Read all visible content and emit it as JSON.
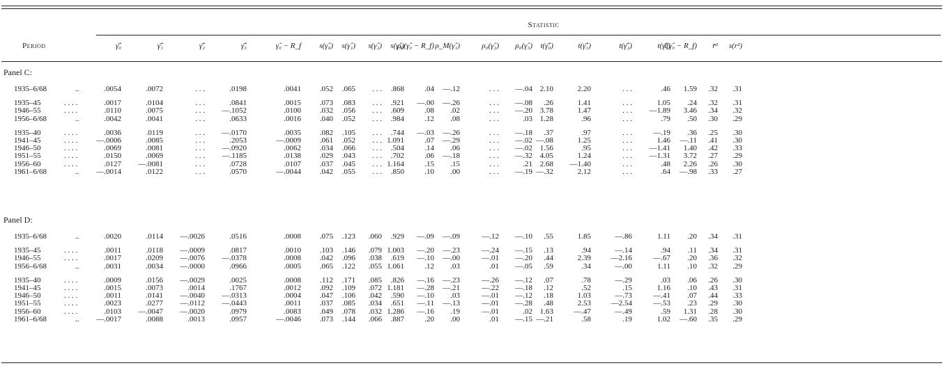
{
  "header": {
    "period_label": "Period",
    "statistic_label": "Statistic",
    "columns": [
      "γ̂̄₀",
      "γ̂̄₁",
      "γ̂̄₂",
      "γ̂̄₃",
      "γ̂₀ − R_f",
      "s(γ̂₀)",
      "s(γ̂₁)",
      "s(γ̂₂)",
      "s(γ̂₃)",
      "ρ₀(γ̂₀ − R_f)",
      "ρ_M(γ̂₁)",
      "ρ₀(γ̂₂)",
      "ρ₀(γ̂₃)",
      "t(γ̂̄₀)",
      "t(γ̂̄₁)",
      "t(γ̂̄₂)",
      "t(γ̂̄₃)",
      "t(γ̂₀ − R_f)",
      "r̄²",
      "s(r²)"
    ]
  },
  "panels": [
    {
      "label": "Panel C:",
      "groups": [
        [
          {
            "period": "1935–6/68",
            "dots": "..",
            "values": [
              ".0054",
              ".0072",
              ". . .",
              ".0198",
              ".0041",
              ".052",
              ".065",
              ". . .",
              ".868",
              ".04",
              "—.12",
              ". . .",
              "—.04",
              "2.10",
              "2.20",
              ". . .",
              ".46",
              "1.59",
              ".32",
              ".31"
            ]
          }
        ],
        [
          {
            "period": "1935–45",
            "dots": ". . . .",
            "values": [
              ".0017",
              ".0104",
              ". . .",
              ".0841",
              ".0015",
              ".073",
              ".083",
              ". . .",
              ".921",
              "—.00",
              "—.26",
              ". . .",
              "—.08",
              ".26",
              "1.41",
              ". . .",
              "1.05",
              ".24",
              ".32",
              ".31"
            ]
          },
          {
            "period": "1946–55",
            "dots": ". . . .",
            "values": [
              ".0110",
              ".0075",
              ". . .",
              "—.1052",
              ".0100",
              ".032",
              ".056",
              ". . .",
              ".609",
              ".08",
              ".02",
              ". . .",
              "—.20",
              "3.78",
              "1.47",
              ". . .",
              "—1.89",
              "3.46",
              ".34",
              ".32"
            ]
          },
          {
            "period": "1956–6/68",
            "dots": "..",
            "values": [
              ".0042",
              ".0041",
              ". . .",
              ".0633",
              ".0016",
              ".040",
              ".052",
              ". . .",
              ".984",
              ".12",
              ".08",
              ". . .",
              ".03",
              "1.28",
              ".96",
              ". . .",
              ".79",
              ".50",
              ".30",
              ".29"
            ]
          }
        ],
        [
          {
            "period": "1935–40",
            "dots": ". . . .",
            "values": [
              ".0036",
              ".0119",
              ". . .",
              "—.0170",
              ".0035",
              ".082",
              ".105",
              ". . .",
              ".744",
              "—.03",
              "—.26",
              ". . .",
              "—.18",
              ".37",
              ".97",
              ". . .",
              "—.19",
              ".36",
              ".25",
              ".30"
            ]
          },
          {
            "period": "1941–45",
            "dots": ". . . .",
            "values": [
              "—.0006",
              ".0085",
              ". . .",
              ".2053",
              "—.0009",
              ".061",
              ".052",
              ". . .",
              "1.091",
              ".07",
              "—.29",
              ". . .",
              "—.02",
              "—.08",
              "1.25",
              ". . .",
              "1.46",
              "—.11",
              ".41",
              ".30"
            ]
          },
          {
            "period": "1946–50",
            "dots": ". . . .",
            "values": [
              ".0069",
              ".0081",
              ". . .",
              "—.0920",
              ".0062",
              ".034",
              ".066",
              ". . .",
              ".504",
              ".14",
              ".06",
              ". . .",
              "—.02",
              "1.56",
              ".95",
              ". . .",
              "—1.41",
              "1.40",
              ".42",
              ".33"
            ]
          },
          {
            "period": "1951–55",
            "dots": ". . . .",
            "values": [
              ".0150",
              ".0069",
              ". . .",
              "—.1185",
              ".0138",
              ".029",
              ".043",
              ". . .",
              ".702",
              ".06",
              "—.18",
              ". . .",
              "—.32",
              "4.05",
              "1.24",
              ". . .",
              "—1.31",
              "3.72",
              ".27",
              ".29"
            ]
          },
          {
            "period": "1956–60",
            "dots": ". . . .",
            "values": [
              ".0127",
              "—.0081",
              ". . .",
              ".0728",
              ".0107",
              ".037",
              ".045",
              ". . .",
              "1.164",
              ".15",
              ".15",
              ". . .",
              ".21",
              "2.68",
              "—1.40",
              ". . .",
              ".48",
              "2.26",
              ".26",
              ".30"
            ]
          },
          {
            "period": "1961–6/68",
            "dots": "..",
            "values": [
              "—.0014",
              ".0122",
              ". . .",
              ".0570",
              "—.0044",
              ".042",
              ".055",
              ". . .",
              ".850",
              ".10",
              ".00",
              ". . .",
              "—.19",
              "—.32",
              "2.12",
              ". . .",
              ".64",
              "—.98",
              ".33",
              ".27"
            ]
          }
        ]
      ]
    },
    {
      "label": "Panel D:",
      "groups": [
        [
          {
            "period": "1935–6/68",
            "dots": "..",
            "values": [
              ".0020",
              ".0114",
              "—.0026",
              ".0516",
              ".0008",
              ".075",
              ".123",
              ".060",
              ".929",
              "—.09",
              "—.09",
              "—.12",
              "—.10",
              ".55",
              "1.85",
              "—.86",
              "1.11",
              ".20",
              ".34",
              ".31"
            ]
          }
        ],
        [
          {
            "period": "1935–45",
            "dots": ". . . .",
            "values": [
              ".0011",
              ".0118",
              "—.0009",
              ".0817",
              ".0010",
              ".103",
              ".146",
              ".079",
              "1.003",
              "—.20",
              "—.23",
              "—.24",
              "—.15",
              ".13",
              ".94",
              "—.14",
              ".94",
              ".11",
              ".34",
              ".31"
            ]
          },
          {
            "period": "1946–55",
            "dots": ". . . .",
            "values": [
              ".0017",
              ".0209",
              "—.0076",
              "—.0378",
              ".0008",
              ".042",
              ".096",
              ".038",
              ".619",
              "—.10",
              "—.00",
              "—.01",
              "—.20",
              ".44",
              "2.39",
              "—2.16",
              "—.67",
              ".20",
              ".36",
              ".32"
            ]
          },
          {
            "period": "1956–6/68",
            "dots": "..",
            "values": [
              ".0031",
              ".0034",
              "—.0000",
              ".0966",
              ".0005",
              ".065",
              ".122",
              ".055",
              "1.061",
              ".12",
              ".03",
              ".01",
              "—.05",
              ".59",
              ".34",
              "—.00",
              "1.11",
              ".10",
              ".32",
              ".29"
            ]
          }
        ],
        [
          {
            "period": "1935–40",
            "dots": ". . . .",
            "values": [
              ".0009",
              ".0156",
              "—.0029",
              ".0025",
              ".0008",
              ".112",
              ".171",
              ".085",
              ".826",
              "—.16",
              "—.23",
              "—.26",
              "—.12",
              ".07",
              ".78",
              "—.29",
              ".03",
              ".06",
              ".26",
              ".30"
            ]
          },
          {
            "period": "1941–45",
            "dots": ". . . .",
            "values": [
              ".0015",
              ".0073",
              ".0014",
              ".1767",
              ".0012",
              ".092",
              ".109",
              ".072",
              "1.181",
              "—.28",
              "—.21",
              "—.22",
              "—.18",
              ".12",
              ".52",
              ".15",
              "1.16",
              ".10",
              ".43",
              ".31"
            ]
          },
          {
            "period": "1946–50",
            "dots": ". . . .",
            "values": [
              ".0011",
              ".0141",
              "—.0040",
              "—.0313",
              ".0004",
              ".047",
              ".106",
              ".042",
              ".590",
              "—.10",
              ".03",
              "—.01",
              "—.12",
              ".18",
              "1.03",
              "—.73",
              "—.41",
              ".07",
              ".44",
              ".33"
            ]
          },
          {
            "period": "1951–55",
            "dots": ". . . .",
            "values": [
              ".0023",
              ".0277",
              "—.0112",
              "—.0443",
              ".0011",
              ".037",
              ".085",
              ".034",
              ".651",
              "—.11",
              "—.13",
              "—.01",
              "—.28",
              ".48",
              "2.53",
              "—2.54",
              "—.53",
              ".23",
              ".29",
              ".30"
            ]
          },
          {
            "period": "1956–60",
            "dots": ". . . .",
            "values": [
              ".0103",
              "—.0047",
              "—.0020",
              ".0979",
              ".0083",
              ".049",
              ".078",
              ".032",
              "1.286",
              "—.16",
              ".19",
              "—.01",
              ".02",
              "1.63",
              "—.47",
              "—.49",
              ".59",
              "1.31",
              ".28",
              ".30"
            ]
          },
          {
            "period": "1961–6/68",
            "dots": "..",
            "values": [
              "—.0017",
              ".0088",
              ".0013",
              ".0957",
              "—.0046",
              ".073",
              ".144",
              ".066",
              ".887",
              ".20",
              ".00",
              ".01",
              "—.15",
              "—.21",
              ".58",
              ".19",
              "1.02",
              "—.60",
              ".35",
              ".29"
            ]
          }
        ]
      ]
    }
  ]
}
